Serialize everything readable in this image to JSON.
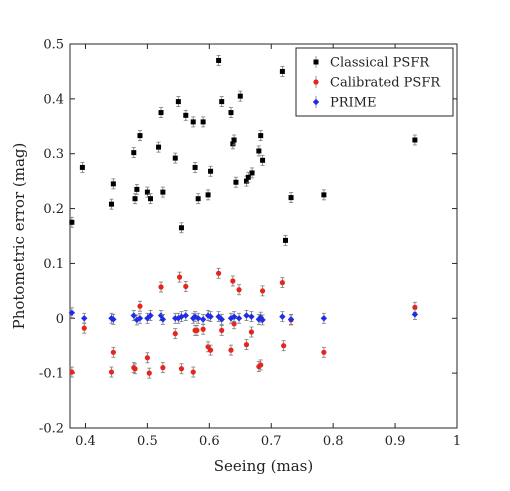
{
  "chart_data": {
    "type": "scatter",
    "title": "",
    "xlabel": "Seeing (mas)",
    "ylabel": "Photometric error (mag)",
    "xlim": [
      0.375,
      1.0
    ],
    "ylim": [
      -0.2,
      0.5
    ],
    "xticks": [
      0.4,
      0.5,
      0.6,
      0.7,
      0.8,
      0.9,
      1.0
    ],
    "xtick_labels": [
      "0.4",
      "0.5",
      "0.6",
      "0.7",
      "0.8",
      "0.9",
      "1"
    ],
    "yticks": [
      -0.2,
      -0.1,
      0.0,
      0.1,
      0.2,
      0.3,
      0.4,
      0.5
    ],
    "ytick_labels": [
      "-0.2",
      "-0.1",
      "0",
      "0.1",
      "0.2",
      "0.3",
      "0.4",
      "0.5"
    ],
    "grid": false,
    "legend_position": "top-right",
    "series": [
      {
        "name": "Classical PSFR",
        "color": "#000000",
        "marker": "square",
        "x": [
          0.378,
          0.395,
          0.442,
          0.445,
          0.478,
          0.48,
          0.483,
          0.488,
          0.5,
          0.505,
          0.518,
          0.522,
          0.525,
          0.545,
          0.55,
          0.555,
          0.562,
          0.574,
          0.577,
          0.582,
          0.59,
          0.598,
          0.602,
          0.615,
          0.62,
          0.635,
          0.638,
          0.64,
          0.643,
          0.65,
          0.66,
          0.663,
          0.669,
          0.68,
          0.683,
          0.686,
          0.718,
          0.723,
          0.732,
          0.785,
          0.932
        ],
        "y": [
          0.175,
          0.275,
          0.208,
          0.245,
          0.302,
          0.218,
          0.235,
          0.333,
          0.23,
          0.218,
          0.312,
          0.375,
          0.23,
          0.292,
          0.395,
          0.165,
          0.37,
          0.358,
          0.275,
          0.218,
          0.358,
          0.225,
          0.268,
          0.47,
          0.395,
          0.375,
          0.318,
          0.325,
          0.248,
          0.405,
          0.25,
          0.257,
          0.265,
          0.305,
          0.333,
          0.288,
          0.45,
          0.142,
          0.22,
          0.225,
          0.325
        ]
      },
      {
        "name": "Calibrated PSFR",
        "color": "#e8251c",
        "marker": "circle",
        "x": [
          0.378,
          0.398,
          0.442,
          0.445,
          0.478,
          0.48,
          0.488,
          0.5,
          0.503,
          0.522,
          0.525,
          0.545,
          0.552,
          0.555,
          0.562,
          0.574,
          0.577,
          0.58,
          0.59,
          0.598,
          0.602,
          0.615,
          0.62,
          0.635,
          0.638,
          0.64,
          0.648,
          0.66,
          0.668,
          0.68,
          0.683,
          0.686,
          0.718,
          0.72,
          0.732,
          0.785,
          0.932
        ],
        "y": [
          -0.098,
          -0.018,
          -0.098,
          -0.062,
          -0.09,
          -0.092,
          0.022,
          -0.072,
          -0.1,
          0.057,
          -0.09,
          -0.028,
          0.075,
          -0.092,
          0.058,
          -0.098,
          -0.022,
          -0.022,
          -0.02,
          -0.052,
          -0.058,
          0.082,
          -0.022,
          -0.058,
          0.068,
          -0.01,
          0.052,
          -0.048,
          -0.025,
          -0.088,
          -0.085,
          0.05,
          0.065,
          -0.05,
          -0.003,
          -0.062,
          0.02
        ]
      },
      {
        "name": "PRIME",
        "color": "#1f2ee6",
        "marker": "diamond",
        "x": [
          0.378,
          0.398,
          0.442,
          0.445,
          0.478,
          0.483,
          0.488,
          0.5,
          0.505,
          0.522,
          0.525,
          0.545,
          0.55,
          0.555,
          0.562,
          0.574,
          0.577,
          0.582,
          0.59,
          0.598,
          0.602,
          0.615,
          0.62,
          0.635,
          0.64,
          0.648,
          0.66,
          0.668,
          0.68,
          0.683,
          0.686,
          0.718,
          0.732,
          0.785,
          0.932
        ],
        "y": [
          0.01,
          0.0,
          0.0,
          -0.002,
          0.005,
          -0.003,
          0.0,
          0.0,
          0.005,
          0.005,
          -0.002,
          0.0,
          0.0,
          0.003,
          0.005,
          0.0,
          0.003,
          0.0,
          -0.002,
          0.005,
          0.003,
          0.003,
          -0.002,
          0.0,
          0.003,
          0.0,
          0.005,
          0.003,
          -0.002,
          0.002,
          -0.003,
          0.003,
          -0.002,
          0.0,
          0.007
        ]
      }
    ]
  }
}
